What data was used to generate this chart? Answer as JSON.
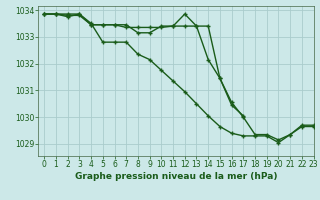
{
  "title": "Graphe pression niveau de la mer (hPa)",
  "background_color": "#cce8e8",
  "plot_bg_color": "#cce8e8",
  "grid_color": "#aacccc",
  "line_color": "#1a5c1a",
  "marker_color": "#1a5c1a",
  "xlim": [
    -0.5,
    23
  ],
  "ylim": [
    1028.55,
    1034.15
  ],
  "yticks": [
    1029,
    1030,
    1031,
    1032,
    1033,
    1034
  ],
  "xticks": [
    0,
    1,
    2,
    3,
    4,
    5,
    6,
    7,
    8,
    9,
    10,
    11,
    12,
    13,
    14,
    15,
    16,
    17,
    18,
    19,
    20,
    21,
    22,
    23
  ],
  "series1_x": [
    0,
    1,
    2,
    3,
    4,
    5,
    6,
    7,
    8,
    9,
    10,
    11,
    12,
    13,
    14,
    15,
    16,
    17,
    18,
    19,
    20,
    21,
    22,
    23
  ],
  "series1_y": [
    1033.85,
    1033.85,
    1033.75,
    1033.85,
    1033.5,
    1032.8,
    1032.8,
    1032.8,
    1032.35,
    1032.15,
    1031.75,
    1031.35,
    1030.95,
    1030.5,
    1030.05,
    1029.65,
    1029.4,
    1029.3,
    1029.3,
    1029.3,
    1029.05,
    1029.35,
    1029.65,
    1029.65
  ],
  "series2_x": [
    0,
    1,
    2,
    3,
    4,
    5,
    6,
    7,
    8,
    9,
    10,
    11,
    12,
    13,
    14,
    15,
    16,
    17
  ],
  "series2_y": [
    1033.85,
    1033.85,
    1033.85,
    1033.85,
    1033.45,
    1033.45,
    1033.45,
    1033.45,
    1033.15,
    1033.15,
    1033.4,
    1033.4,
    1033.85,
    1033.4,
    1032.15,
    1031.45,
    1030.45,
    1030.05
  ],
  "series3_x": [
    0,
    1,
    2,
    3,
    4,
    5,
    6,
    7,
    8,
    9,
    10,
    11,
    12,
    13,
    14,
    15,
    16,
    17,
    18,
    19,
    20,
    21,
    22,
    23
  ],
  "series3_y": [
    1033.85,
    1033.85,
    1033.8,
    1033.8,
    1033.45,
    1033.45,
    1033.45,
    1033.35,
    1033.35,
    1033.35,
    1033.35,
    1033.4,
    1033.4,
    1033.4,
    1033.4,
    1031.45,
    1030.55,
    1030.0,
    1029.35,
    1029.35,
    1029.15,
    1029.35,
    1029.7,
    1029.7
  ],
  "xlabel_fontsize": 6.5,
  "tick_fontsize": 5.5,
  "linewidth": 1.0,
  "markersize": 3.0,
  "markeredgewidth": 1.0
}
